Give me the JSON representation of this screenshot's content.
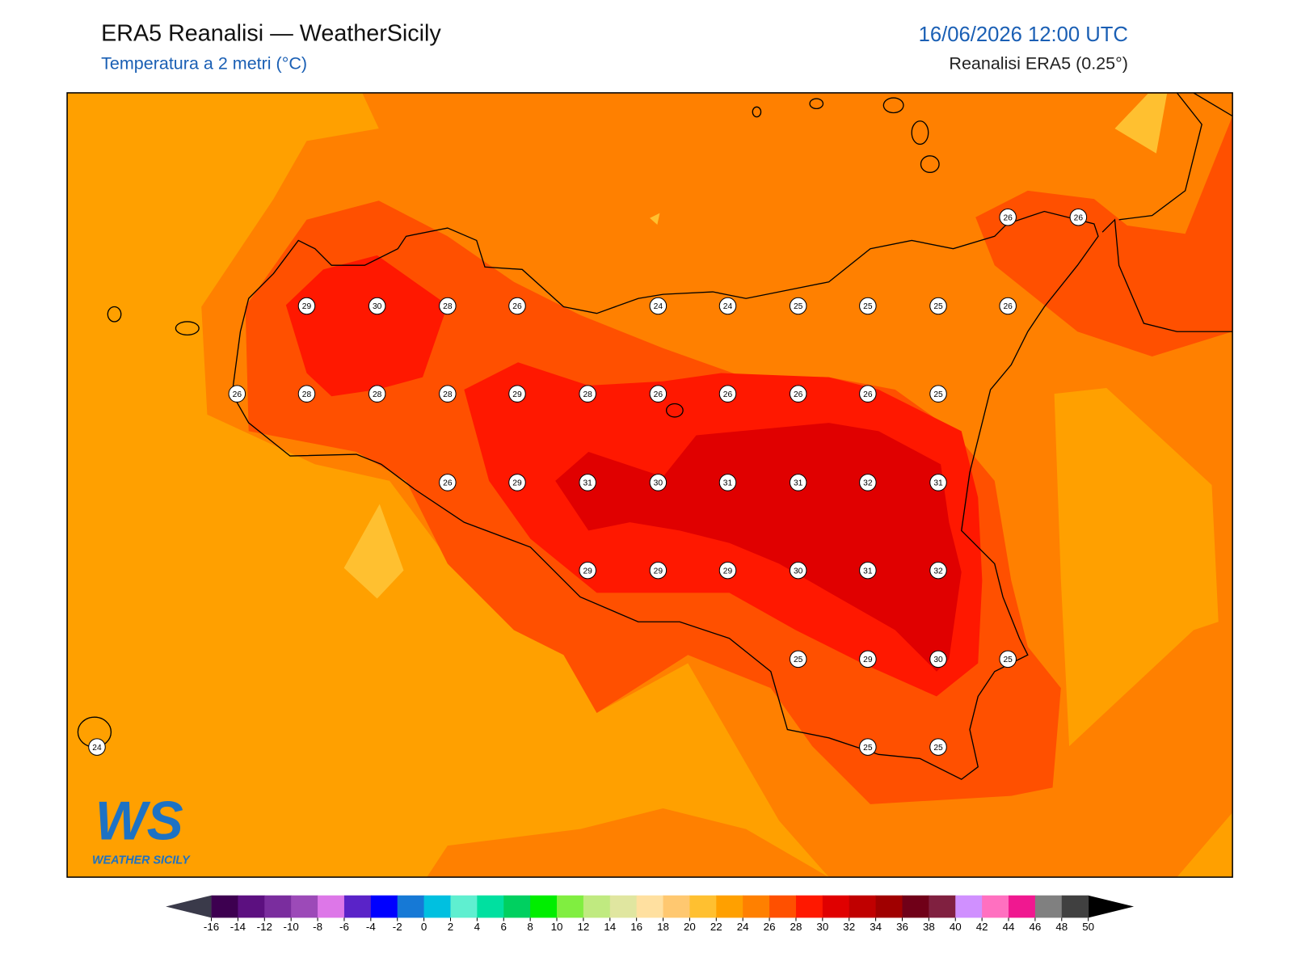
{
  "header": {
    "title": "ERA5 Reanalisi — WeatherSicily",
    "subtitle": "Temperatura a 2 metri (°C)",
    "datetime": "16/06/2026 12:00 UTC",
    "source": "Reanalisi ERA5 (0.25°)"
  },
  "stations": [
    26,
    26,
    29,
    30,
    28,
    26,
    24,
    24,
    25,
    25,
    25,
    26,
    26,
    28,
    28,
    28,
    29,
    28,
    26,
    26,
    26,
    26,
    25,
    26,
    29,
    31,
    30,
    31,
    31,
    32,
    31,
    29,
    29,
    29,
    30,
    31,
    32,
    25,
    29,
    30,
    25,
    24,
    25,
    25
  ],
  "colorbar": {
    "ticks": [
      -16,
      -14,
      -12,
      -10,
      -8,
      -6,
      -4,
      -2,
      0,
      2,
      4,
      6,
      8,
      10,
      12,
      14,
      16,
      18,
      20,
      22,
      24,
      26,
      28,
      30,
      32,
      34,
      36,
      38,
      40,
      42,
      44,
      46,
      48,
      50
    ],
    "colors": [
      "#3d0050",
      "#5c1080",
      "#7a2d9e",
      "#9c4ab8",
      "#dd77e8",
      "#5a23c8",
      "#0000ff",
      "#1679d6",
      "#00c0e0",
      "#5fefd0",
      "#00e0a0",
      "#00d060",
      "#00ee00",
      "#80ee40",
      "#c0ea80",
      "#e0e6a0",
      "#ffe0a0",
      "#ffc870",
      "#ffc030",
      "#ffa000",
      "#ff8000",
      "#ff5000",
      "#ff1800",
      "#e00000",
      "#c00000",
      "#a00000",
      "#700018",
      "#802040",
      "#d090ff",
      "#ff70c0",
      "#f01890",
      "#808080",
      "#404040"
    ],
    "under_color": "#3a3a4a",
    "over_color": "#000000"
  },
  "logo": {
    "mark": "WS",
    "name": "WEATHER SICILY"
  }
}
